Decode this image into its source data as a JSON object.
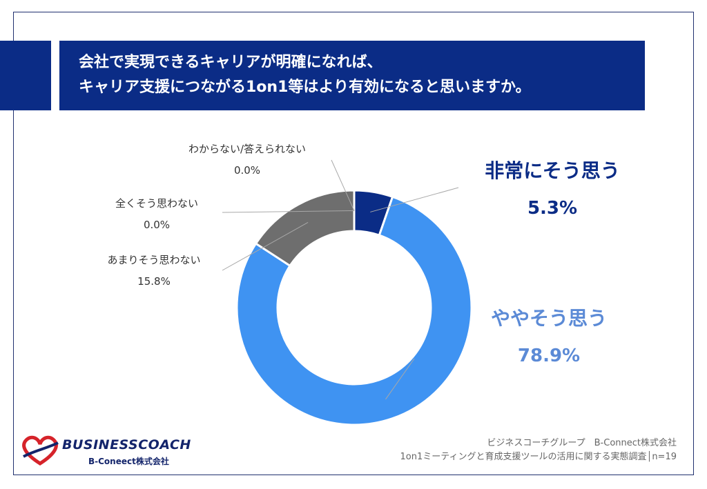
{
  "title": {
    "line1": "会社で実現できるキャリアが明確になれば、",
    "line2": "キャリア支援につながる1on1等はより有効になると思いますか。"
  },
  "chart_data": {
    "type": "pie",
    "subtype": "donut",
    "categories": [
      "非常にそう思う",
      "ややそう思う",
      "あまりそう思わない",
      "全くそう思わない",
      "わからない/答えられない"
    ],
    "values": [
      5.3,
      78.9,
      15.8,
      0.0,
      0.0
    ],
    "value_labels": [
      "5.3%",
      "78.9%",
      "15.8%",
      "0.0%",
      "0.0%"
    ],
    "colors": [
      "#0b2c86",
      "#3f93f2",
      "#6e6e6e",
      "#6e6e6e",
      "#6e6e6e"
    ],
    "label_colors": [
      "#0b2c86",
      "#5b8ad6",
      "#333333",
      "#333333",
      "#333333"
    ],
    "start": "12 o'clock, clockwise",
    "legend": "none"
  },
  "credit": {
    "line1": "ビジネスコーチグループ　B-Connect株式会社",
    "line2": "1on1ミーティングと育成支援ツールの活用に関する実態調査│n=19"
  },
  "logo": {
    "main": "BUSINESSCOACH",
    "sub": "B-Coneect株式会社"
  }
}
